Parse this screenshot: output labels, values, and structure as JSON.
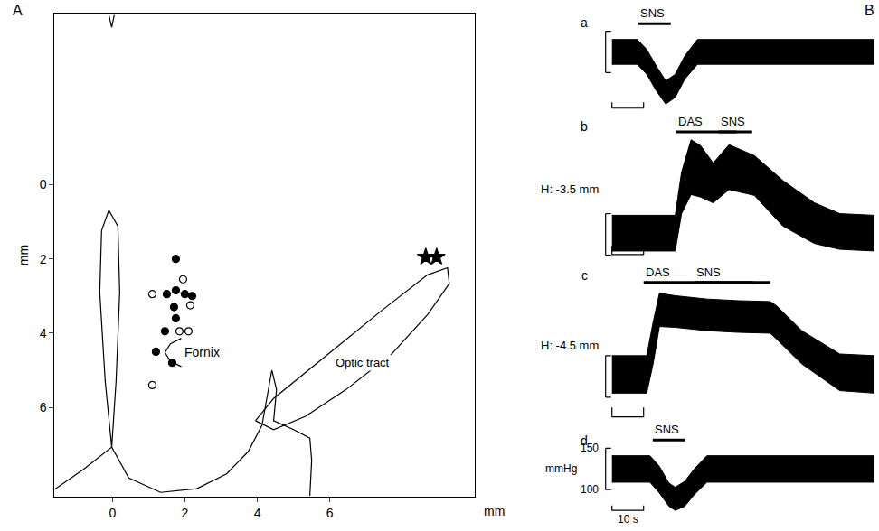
{
  "chart_data": [
    {
      "panel": "A",
      "type": "scatter",
      "grid": false,
      "xlim": [
        -1.6,
        10
      ],
      "ylim": [
        8.4,
        -4.6
      ],
      "xticks": [
        0,
        2,
        4,
        6
      ],
      "yticks": [
        0,
        2,
        4,
        6
      ],
      "x_label": "mm",
      "y_label": "mm",
      "series": [
        {
          "type": "line",
          "color": "#000000",
          "x": [
            -0.1,
            -0.02,
            0.05
          ],
          "y": [
            -4.57,
            -4.24,
            -4.57
          ]
        },
        {
          "type": "line",
          "color": "#000000",
          "x": [
            -0.1,
            0.15,
            0.2,
            0.1,
            -0.02,
            -0.2,
            -0.35,
            -0.3,
            -0.1
          ],
          "y": [
            0.69,
            1.12,
            2.9,
            5.29,
            7.07,
            5.29,
            2.9,
            1.24,
            0.69
          ]
        },
        {
          "type": "line",
          "color": "#000000",
          "x": [
            -1.6,
            -0.8,
            -0.02,
            0.45,
            1.33,
            2.33,
            3.15,
            3.75,
            4.13,
            4.3,
            4.4,
            4.53,
            4.45,
            5.0,
            5.45,
            5.5,
            5.45
          ],
          "y": [
            8.21,
            7.67,
            7.07,
            7.9,
            8.29,
            8.19,
            7.79,
            7.19,
            6.48,
            5.52,
            5.0,
            5.52,
            6.36,
            6.6,
            6.83,
            7.43,
            8.38
          ]
        },
        {
          "type": "line",
          "color": "#000000",
          "x": [
            1.9,
            1.6,
            1.45,
            1.6,
            1.9
          ],
          "y": [
            4.14,
            4.29,
            4.52,
            4.76,
            4.9
          ]
        },
        {
          "type": "line",
          "color": "#000000",
          "x": [
            3.95,
            4.45,
            5.95,
            7.45,
            8.7,
            9.25,
            9.3,
            8.7,
            7.7,
            6.45,
            5.33,
            4.45,
            3.95
          ],
          "y": [
            6.36,
            5.76,
            4.57,
            3.38,
            2.43,
            2.24,
            2.67,
            3.5,
            4.57,
            5.52,
            6.24,
            6.6,
            6.36
          ]
        },
        {
          "type": "scatter",
          "marker": "circle",
          "color": "#000000",
          "x": [
            1.75,
            1.5,
            1.75,
            2.0,
            2.2,
            1.7,
            1.75,
            1.45,
            1.2,
            1.65
          ],
          "y": [
            2.0,
            2.95,
            2.85,
            2.95,
            3.0,
            3.3,
            3.6,
            3.95,
            4.5,
            4.8
          ]
        },
        {
          "type": "scatter",
          "marker": "circle-open",
          "color": "#000000",
          "x": [
            1.1,
            1.95,
            2.15,
            1.85,
            2.1,
            1.1
          ],
          "y": [
            2.95,
            2.55,
            3.25,
            3.95,
            3.95,
            5.4
          ]
        },
        {
          "type": "scatter",
          "marker": "star",
          "color": "#000000",
          "x": [
            8.65,
            8.95
          ],
          "y": [
            1.95,
            1.95
          ]
        }
      ],
      "annotations": [
        {
          "text": "Fornix",
          "x": 1.95,
          "y": 4.52
        },
        {
          "text": "Optic tract",
          "x": 6.9,
          "y": 4.8
        }
      ]
    },
    {
      "panel": "B",
      "subpanel": "a",
      "type": "line",
      "tick_labels": false,
      "color": "#000000",
      "xlim": [
        -2,
        83
      ],
      "ylim": [
        51,
        171
      ],
      "x": [
        0,
        8,
        11,
        14,
        17,
        20,
        23,
        27,
        83
      ],
      "low": [
        110,
        110,
        98,
        78,
        62,
        70,
        92,
        110,
        110
      ],
      "high": [
        140,
        140,
        128,
        108,
        90,
        98,
        120,
        140,
        140
      ],
      "stimuli": [
        {
          "label": "SNS",
          "start": 8.3,
          "end": 18.6
        }
      ],
      "scale_bar": {
        "time": [
          0,
          10
        ],
        "pressure": [
          100,
          150
        ]
      }
    },
    {
      "subpanel": "b",
      "type": "line",
      "tick_labels": false,
      "color": "#000000",
      "xlim": [
        -2,
        83
      ],
      "ylim": [
        92,
        266
      ],
      "depth": "H: -3.5 mm",
      "x": [
        0,
        20,
        22,
        25,
        28,
        32,
        37,
        42,
        45,
        54,
        64,
        72,
        83
      ],
      "low": [
        105,
        105,
        150,
        173,
        170,
        163,
        179,
        175,
        172,
        135,
        114,
        107,
        105
      ],
      "high": [
        148,
        148,
        200,
        239,
        232,
        211,
        233,
        225,
        220,
        190,
        163,
        150,
        148
      ],
      "stimuli": [
        {
          "label": "DAS",
          "start": 20.3,
          "end": 44.3
        },
        {
          "label": "SNS",
          "start": 33.7,
          "end": 39.4
        }
      ],
      "scale_bar": {
        "time": [
          0,
          10
        ],
        "pressure": [
          100,
          150
        ]
      }
    },
    {
      "subpanel": "c",
      "type": "line",
      "tick_labels": false,
      "color": "#000000",
      "xlim": [
        -2,
        83
      ],
      "ylim": [
        67,
        257
      ],
      "depth": "H: -4.5 mm",
      "x": [
        0,
        11,
        13,
        15,
        20,
        30,
        40,
        50,
        52,
        60,
        72,
        83
      ],
      "low": [
        105,
        105,
        140,
        185,
        184,
        180,
        178,
        177,
        170,
        140,
        108,
        105
      ],
      "high": [
        150,
        150,
        190,
        225,
        222,
        218,
        216,
        215,
        210,
        180,
        152,
        150
      ],
      "stimuli": [
        {
          "label": "DAS",
          "start": 10,
          "end": 50
        },
        {
          "label": "SNS",
          "start": 26,
          "end": 44.6
        }
      ],
      "scale_bar": {
        "time": [
          0,
          10
        ],
        "pressure": [
          100,
          150
        ]
      }
    },
    {
      "subpanel": "d",
      "type": "line",
      "tick_labels": false,
      "color": "#000000",
      "xlim": [
        -2,
        83
      ],
      "ylim": [
        70,
        170
      ],
      "x": [
        0,
        12,
        15,
        18,
        20,
        23,
        26,
        30,
        83
      ],
      "low": [
        109,
        109,
        96,
        80,
        75,
        80,
        94,
        109,
        109
      ],
      "high": [
        141,
        141,
        128,
        108,
        103,
        110,
        125,
        141,
        141
      ],
      "stimuli": [
        {
          "label": "SNS",
          "start": 12.9,
          "end": 23.1
        }
      ],
      "scale_bar": {
        "time": [
          0,
          10
        ],
        "pressure": [
          100,
          150
        ],
        "pressure_ticks": [
          150,
          100
        ],
        "pressure_unit": "mmHg",
        "time_label": "10 s"
      }
    }
  ]
}
